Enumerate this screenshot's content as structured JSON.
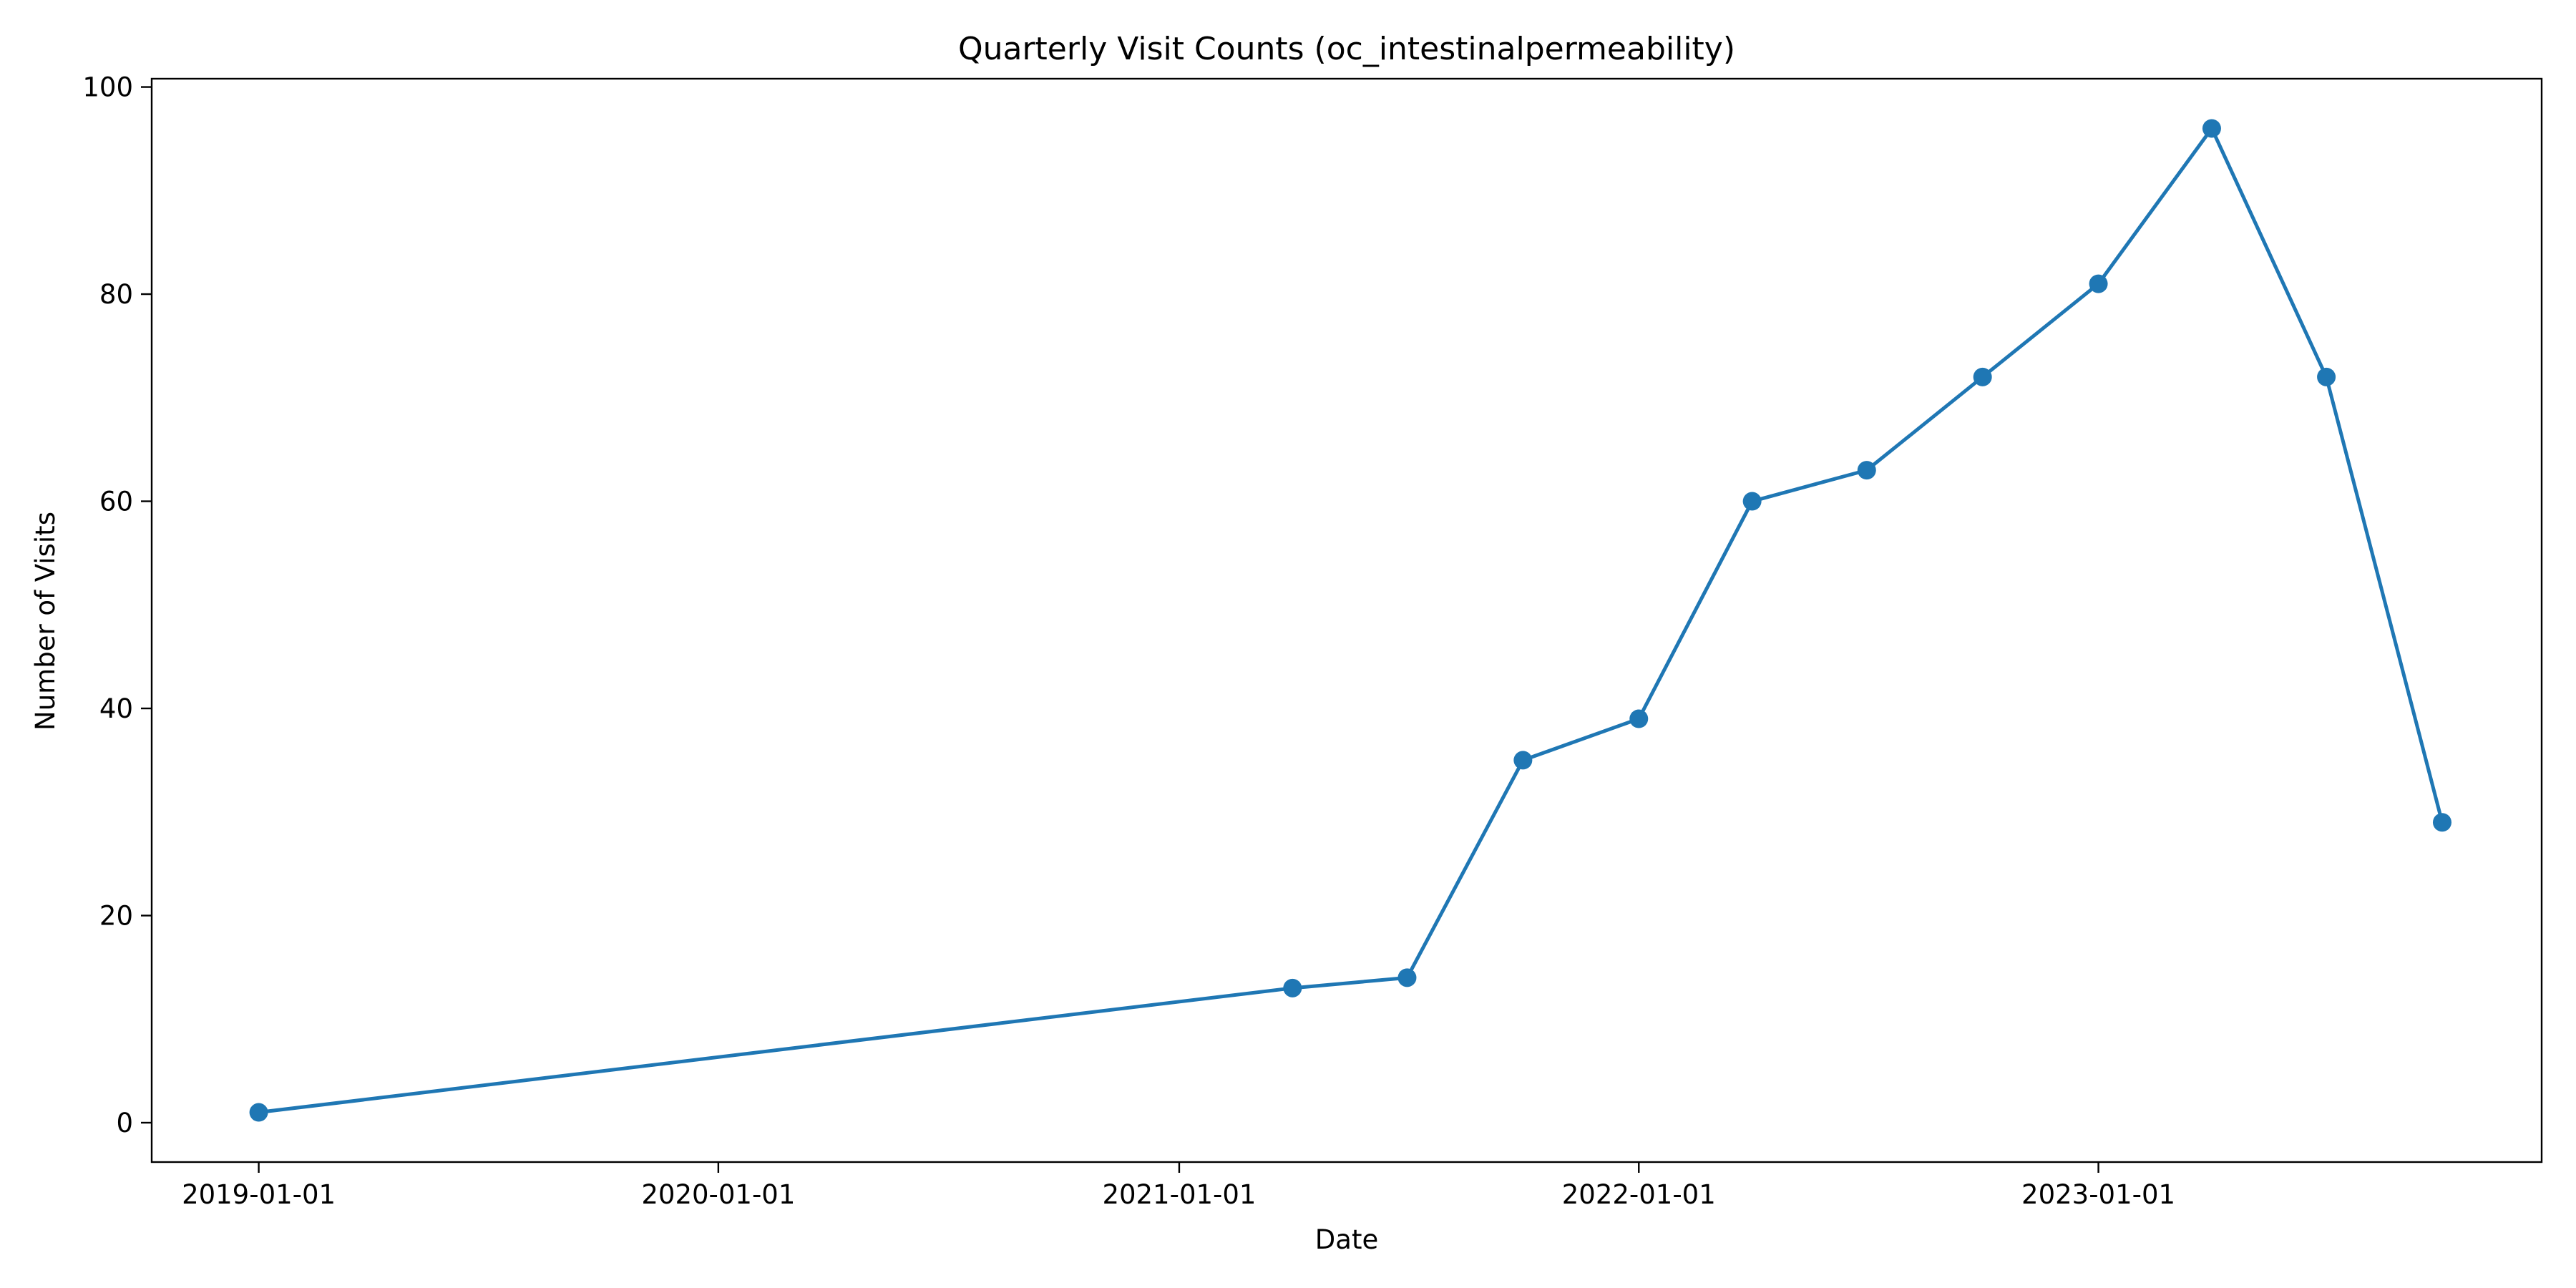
{
  "chart_data": {
    "type": "line",
    "title": "Quarterly Visit Counts (oc_intestinalpermeability)",
    "xlabel": "Date",
    "ylabel": "Number of Visits",
    "x_axis_type": "date",
    "xlim": [
      "2018-10-08",
      "2023-12-19"
    ],
    "ylim": [
      -3.8,
      100.8
    ],
    "x_ticks": [
      "2019-01-01",
      "2020-01-01",
      "2021-01-01",
      "2022-01-01",
      "2023-01-01"
    ],
    "y_ticks": [
      0,
      20,
      40,
      60,
      80,
      100
    ],
    "grid": false,
    "legend": false,
    "marker": "circle",
    "series": [
      {
        "color": "#1f77b4",
        "points": [
          {
            "x": "2019-01-01",
            "y": 1
          },
          {
            "x": "2021-04-01",
            "y": 13
          },
          {
            "x": "2021-07-01",
            "y": 14
          },
          {
            "x": "2021-10-01",
            "y": 35
          },
          {
            "x": "2022-01-01",
            "y": 39
          },
          {
            "x": "2022-04-01",
            "y": 60
          },
          {
            "x": "2022-07-01",
            "y": 63
          },
          {
            "x": "2022-10-01",
            "y": 72
          },
          {
            "x": "2023-01-01",
            "y": 81
          },
          {
            "x": "2023-04-01",
            "y": 96
          },
          {
            "x": "2023-07-01",
            "y": 72
          },
          {
            "x": "2023-10-01",
            "y": 29
          }
        ]
      }
    ]
  }
}
